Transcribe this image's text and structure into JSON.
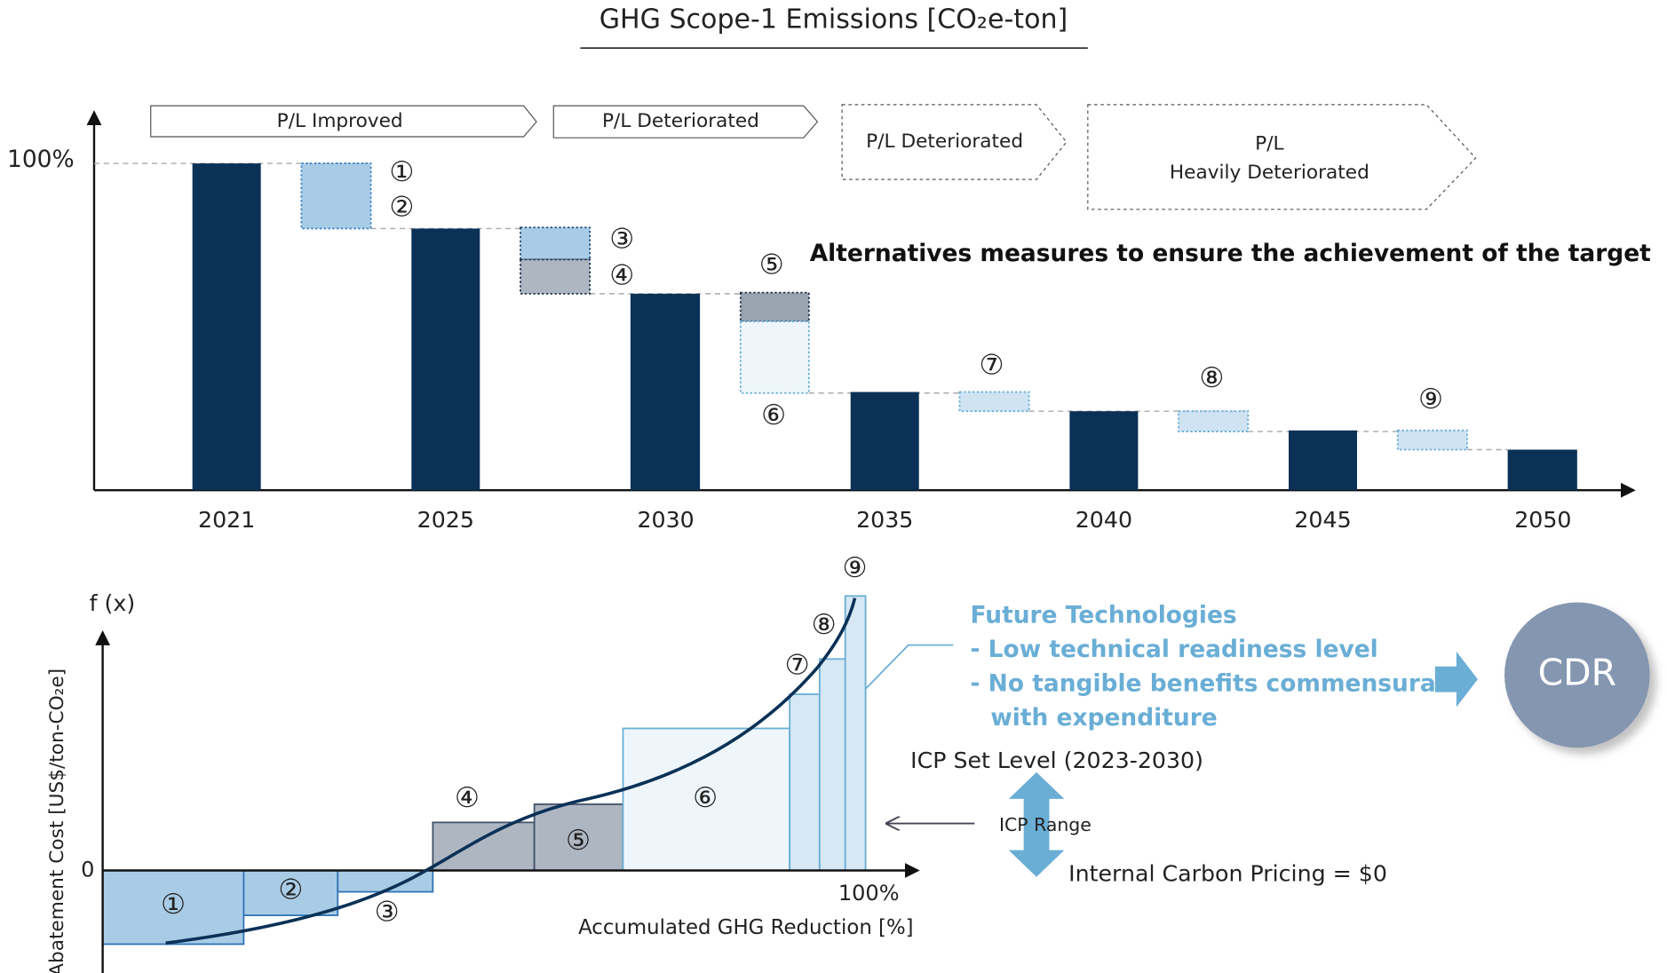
{
  "title": "GHG Scope-1 Emissions [CO₂e-ton]",
  "top_chart": {
    "y_label": "100%",
    "years": [
      "2021",
      "2025",
      "2030",
      "2035",
      "2040",
      "2045",
      "2050"
    ],
    "phases": [
      {
        "label": "P/L Improved"
      },
      {
        "label": "P/L Deteriorated"
      },
      {
        "label": "P/L Deteriorated"
      },
      {
        "lines": [
          "P/L",
          "Heavily Deteriorated"
        ]
      }
    ],
    "measures": [
      "①",
      "②",
      "③",
      "④",
      "⑤",
      "⑥",
      "⑦",
      "⑧",
      "⑨"
    ],
    "alternatives": "Alternatives measures to ensure the achievement of the target"
  },
  "bottom_chart": {
    "fx": "f (x)",
    "y_axis_label": "Abatement Cost [US$/ton-CO₂e]",
    "zero": "0",
    "x_end": "100%",
    "x_axis_label": "Accumulated GHG Reduction [%]",
    "measures": [
      "①",
      "②",
      "③",
      "④",
      "⑤",
      "⑥",
      "⑦",
      "⑧",
      "⑨"
    ],
    "future": [
      "Future Technologies",
      "- Low technical readiness level",
      "- No tangible benefits commensurate",
      "with expenditure"
    ],
    "cdr": "CDR",
    "icp_set": "ICP Set Level (2023-2030)",
    "icp_range": "ICP Range",
    "icp_zero": "Internal Carbon Pricing = $0"
  }
}
